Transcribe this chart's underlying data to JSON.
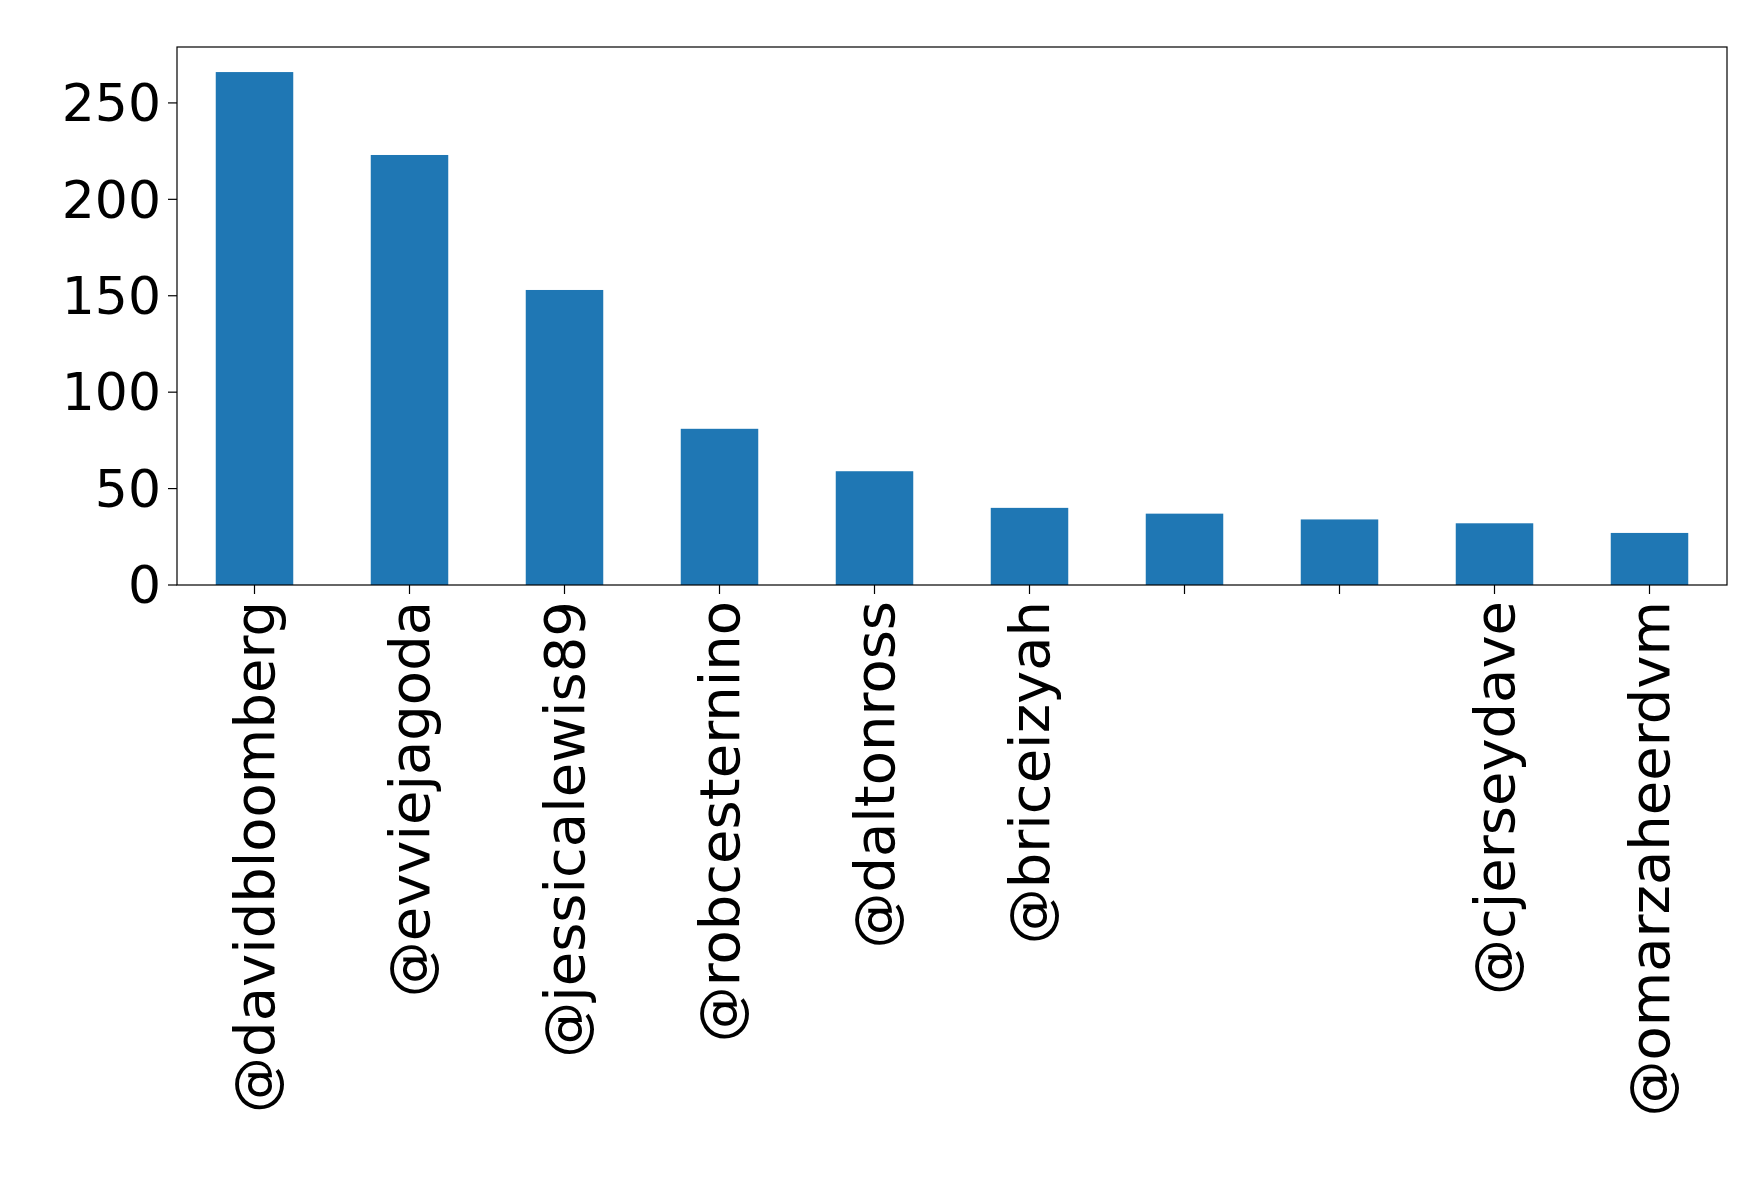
{
  "chart_data": {
    "type": "bar",
    "categories": [
      "@davidbloomberg",
      "@evviejagoda",
      "@jessicalewis89",
      "@robcesternino",
      "@daltonross",
      "@briceizyah",
      null,
      null,
      "@cjerseydave",
      "@omarzaheerdvm"
    ],
    "values": [
      266,
      223,
      153,
      81,
      59,
      40,
      37,
      34,
      32,
      27
    ],
    "color": "#1f77b4",
    "ylim": [
      0,
      279
    ],
    "yticks": [
      0,
      50,
      100,
      150,
      200,
      250
    ]
  }
}
